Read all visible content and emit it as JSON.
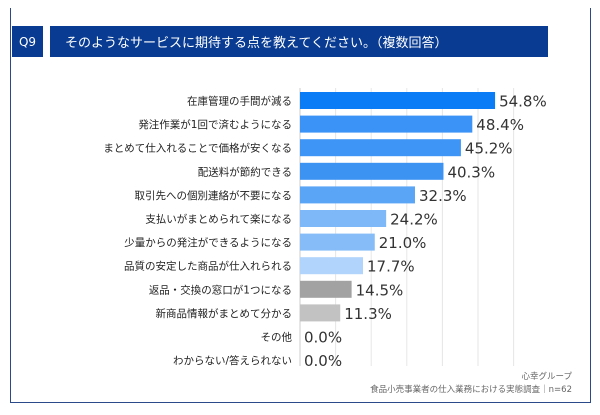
{
  "header": {
    "q_label": "Q9",
    "title": "そのようなサービスに期待する点を教えてください。（複数回答）"
  },
  "footer": {
    "company": "心幸グループ",
    "survey": "食品小売事業者の仕入業務における実態調査｜n=62"
  },
  "chart_data": {
    "type": "bar",
    "orientation": "horizontal",
    "grid": true,
    "xlim": [
      0,
      60
    ],
    "categories": [
      "在庫管理の手間が減る",
      "発注作業が1回で済むようになる",
      "まとめて仕入れることで価格が安くなる",
      "配送料が節約できる",
      "取引先への個別連絡が不要になる",
      "支払いがまとめられて楽になる",
      "少量からの発注ができるようになる",
      "品質の安定した商品が仕入れられる",
      "返品・交換の窓口が1つになる",
      "新商品情報がまとめて分かる",
      "その他",
      "わからない/答えられない"
    ],
    "values": [
      54.8,
      48.4,
      45.2,
      40.3,
      32.3,
      24.2,
      21.0,
      17.7,
      14.5,
      11.3,
      0.0,
      0.0
    ],
    "labels": [
      "54.8%",
      "48.4%",
      "45.2%",
      "40.3%",
      "32.3%",
      "24.2%",
      "21.0%",
      "17.7%",
      "14.5%",
      "11.3%",
      "0.0%",
      "0.0%"
    ],
    "colors": [
      "#0a7cf5",
      "#3b93f7",
      "#3e95f5",
      "#3d93f2",
      "#5aa5f6",
      "#7fb8f8",
      "#86bdf8",
      "#b0d4fb",
      "#a2a2a2",
      "#c2c2c2",
      "#c2c2c2",
      "#c2c2c2"
    ]
  }
}
